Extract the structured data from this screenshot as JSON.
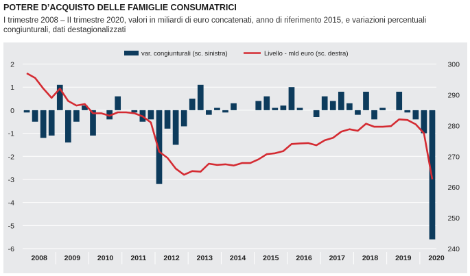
{
  "header": {
    "title": "POTERE D’ACQUISTO DELLE FAMIGLIE CONSUMATRICI",
    "subtitle": "I trimestre 2008 – II trimestre 2020, valori in miliardi di euro concatenati, anno di riferimento 2015, e variazioni percentuali congiunturali, dati destagionalizzati"
  },
  "colors": {
    "bars": "#0d3b5c",
    "line": "#d42b32",
    "background": "#e8e9eb",
    "gridline": "#ffffff"
  },
  "chart_data": {
    "type": "bar+line",
    "categories": [
      "2008Q1",
      "2008Q2",
      "2008Q3",
      "2008Q4",
      "2009Q1",
      "2009Q2",
      "2009Q3",
      "2009Q4",
      "2010Q1",
      "2010Q2",
      "2010Q3",
      "2010Q4",
      "2011Q1",
      "2011Q2",
      "2011Q3",
      "2011Q4",
      "2012Q1",
      "2012Q2",
      "2012Q3",
      "2012Q4",
      "2013Q1",
      "2013Q2",
      "2013Q3",
      "2013Q4",
      "2014Q1",
      "2014Q2",
      "2014Q3",
      "2014Q4",
      "2015Q1",
      "2015Q2",
      "2015Q3",
      "2015Q4",
      "2016Q1",
      "2016Q2",
      "2016Q3",
      "2016Q4",
      "2017Q1",
      "2017Q2",
      "2017Q3",
      "2017Q4",
      "2018Q1",
      "2018Q2",
      "2018Q3",
      "2018Q4",
      "2019Q1",
      "2019Q2",
      "2019Q3",
      "2019Q4",
      "2020Q1",
      "2020Q2"
    ],
    "year_labels": [
      "2008",
      "2009",
      "2010",
      "2011",
      "2012",
      "2013",
      "2014",
      "2015",
      "2016",
      "2017",
      "2018",
      "2019",
      "2020"
    ],
    "series": [
      {
        "name": "var. congiunturali (sc. sinistra)",
        "type": "bar",
        "axis": "left",
        "values": [
          -0.1,
          -0.5,
          -1.2,
          -1.1,
          1.1,
          -1.4,
          -0.5,
          0.2,
          -1.1,
          0.0,
          -0.4,
          0.6,
          0.0,
          -0.1,
          -0.5,
          -0.4,
          -3.2,
          -0.8,
          -1.5,
          -0.7,
          0.5,
          1.1,
          -0.2,
          0.1,
          -0.1,
          0.3,
          0.0,
          0.0,
          0.4,
          0.6,
          0.1,
          0.2,
          1.0,
          0.1,
          0.0,
          -0.3,
          0.6,
          0.4,
          0.8,
          0.3,
          -0.2,
          0.8,
          -0.4,
          0.1,
          0.0,
          0.8,
          -0.1,
          -0.4,
          -1.0,
          -5.6
        ]
      },
      {
        "name": "Livello - mld euro (sc. destra)",
        "type": "line",
        "axis": "right",
        "values": [
          297,
          295.5,
          292,
          289,
          292,
          288,
          286.5,
          287,
          284,
          284,
          283.2,
          284.3,
          284.3,
          284,
          283,
          281,
          271.5,
          269.5,
          266,
          264,
          265.2,
          265,
          267.6,
          267.2,
          267.4,
          267,
          267.8,
          267.8,
          269,
          270.7,
          271,
          271.7,
          274,
          274.2,
          274.3,
          273.6,
          275.2,
          276,
          278,
          278.8,
          278.3,
          280.6,
          279.6,
          279.6,
          279.8,
          282,
          281.8,
          280.4,
          277.5,
          262.5
        ]
      }
    ],
    "y_left": {
      "ylim": [
        -6,
        2
      ],
      "ticks": [
        "2",
        "1",
        "0",
        "-1",
        "-2",
        "-3",
        "-4",
        "-5",
        "-6"
      ]
    },
    "y_right": {
      "ylim": [
        240,
        300
      ],
      "ticks": [
        "300",
        "290",
        "280",
        "270",
        "260",
        "250",
        "240"
      ]
    },
    "grid": true,
    "legend": "top-center"
  }
}
